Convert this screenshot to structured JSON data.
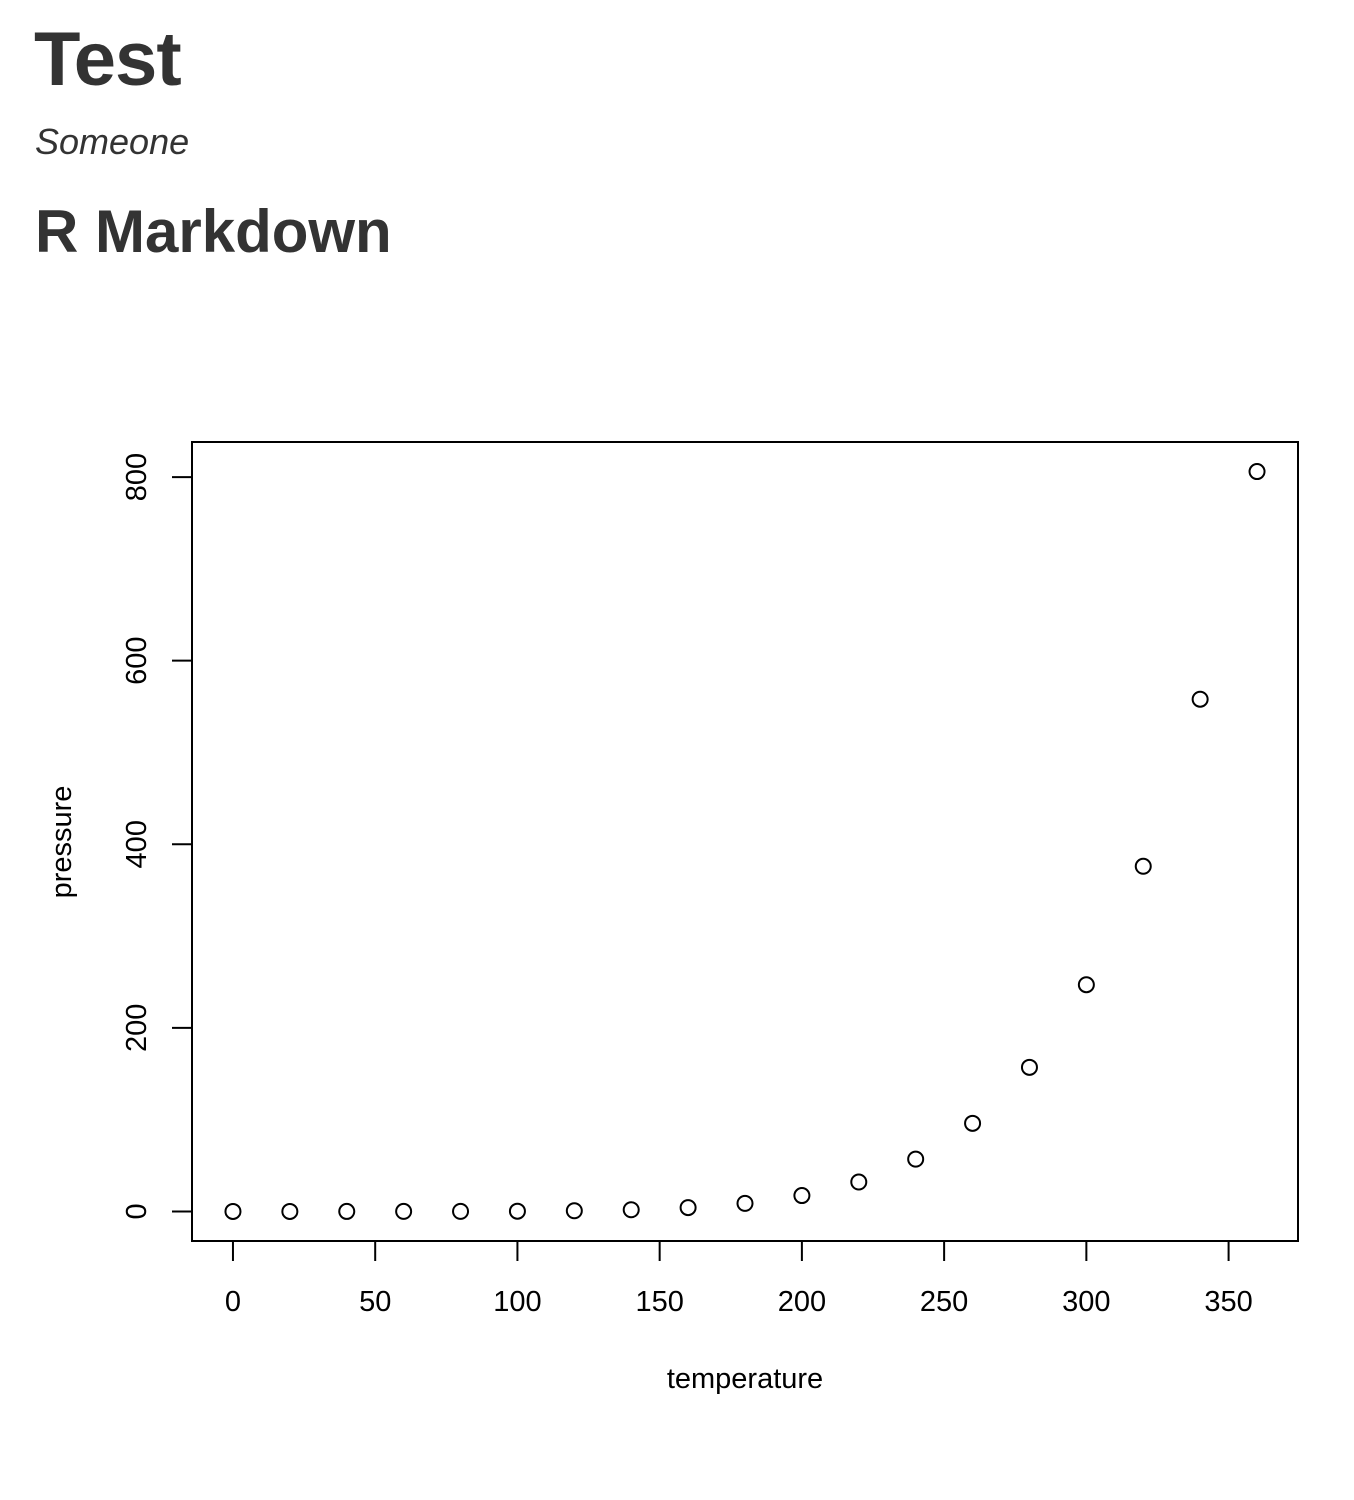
{
  "document": {
    "title": "Test",
    "author": "Someone",
    "section_heading": "R Markdown"
  },
  "chart_data": {
    "type": "scatter",
    "xlabel": "temperature",
    "ylabel": "pressure",
    "xlim": [
      -14.4,
      374.4
    ],
    "ylim": [
      -32.2,
      838.2
    ],
    "xticks": [
      0,
      50,
      100,
      150,
      200,
      250,
      300,
      350
    ],
    "yticks": [
      0,
      200,
      400,
      600,
      800
    ],
    "grid": false,
    "marker": "open-circle",
    "x": [
      0,
      20,
      40,
      60,
      80,
      100,
      120,
      140,
      160,
      180,
      200,
      220,
      240,
      260,
      280,
      300,
      320,
      340,
      360
    ],
    "y": [
      0.0002,
      0.0012,
      0.006,
      0.03,
      0.09,
      0.27,
      0.75,
      1.85,
      4.2,
      8.8,
      17.3,
      32.1,
      57,
      96,
      157,
      247,
      376,
      558,
      806
    ]
  }
}
